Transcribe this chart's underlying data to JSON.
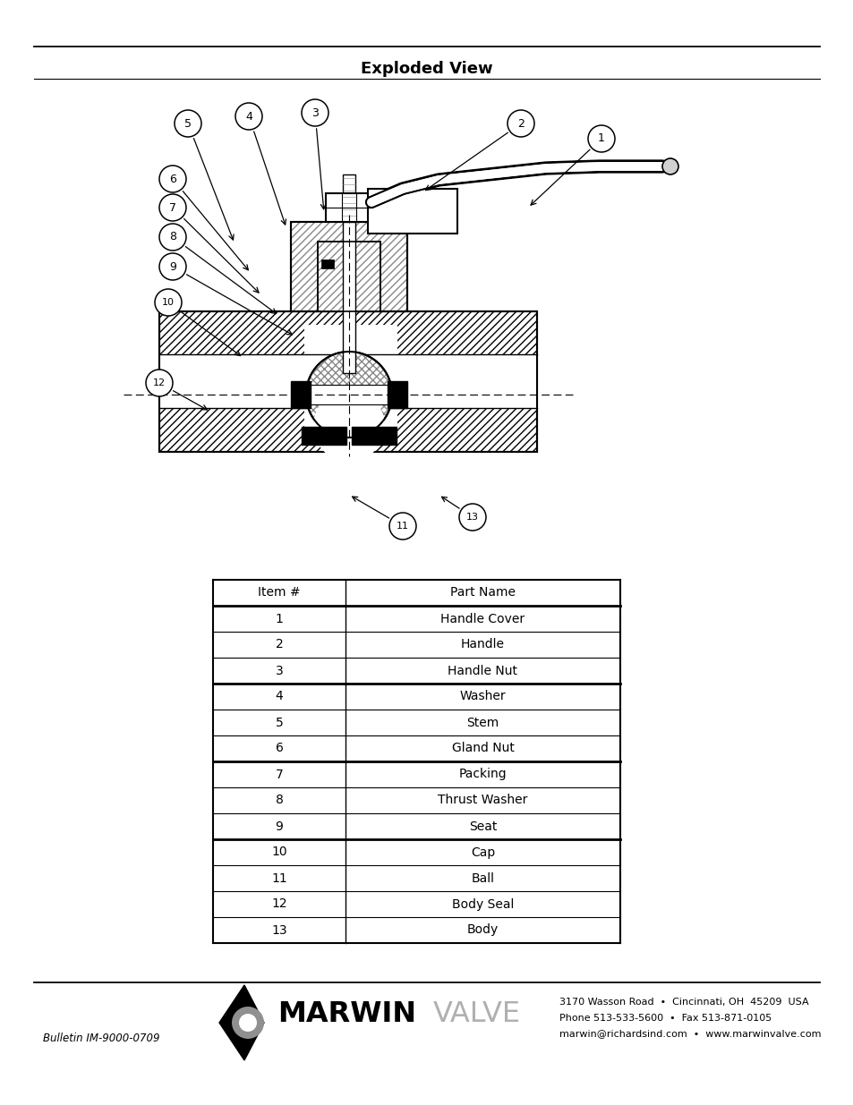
{
  "title": "Exploded View",
  "background_color": "#ffffff",
  "table_items": [
    [
      "Item #",
      "Part Name"
    ],
    [
      "1",
      "Handle Cover"
    ],
    [
      "2",
      "Handle"
    ],
    [
      "3",
      "Handle Nut"
    ],
    [
      "4",
      "Washer"
    ],
    [
      "5",
      "Stem"
    ],
    [
      "6",
      "Gland Nut"
    ],
    [
      "7",
      "Packing"
    ],
    [
      "8",
      "Thrust Washer"
    ],
    [
      "9",
      "Seat"
    ],
    [
      "10",
      "Cap"
    ],
    [
      "11",
      "Ball"
    ],
    [
      "12",
      "Body Seal"
    ],
    [
      "13",
      "Body"
    ]
  ],
  "thick_lines_before": [
    1,
    4,
    7,
    10
  ],
  "bulletin_text": "Bulletin IM-9000-0709",
  "address_line1": "3170 Wasson Road  •  Cincinnati, OH  45209  USA",
  "address_line2": "Phone 513-533-5600  •  Fax 513-871-0105",
  "address_line3": "marwin@richardsind.com  •  www.marwinvalve.com",
  "callouts": [
    [
      1,
      672,
      155,
      590,
      232
    ],
    [
      2,
      582,
      138,
      472,
      215
    ],
    [
      3,
      352,
      126,
      362,
      238
    ],
    [
      4,
      278,
      130,
      320,
      255
    ],
    [
      5,
      210,
      138,
      262,
      272
    ],
    [
      6,
      193,
      200,
      280,
      305
    ],
    [
      7,
      193,
      232,
      292,
      330
    ],
    [
      8,
      193,
      265,
      312,
      353
    ],
    [
      9,
      193,
      298,
      330,
      376
    ],
    [
      10,
      188,
      338,
      272,
      400
    ],
    [
      12,
      178,
      428,
      235,
      460
    ],
    [
      11,
      450,
      588,
      390,
      553
    ],
    [
      13,
      528,
      578,
      490,
      553
    ]
  ]
}
